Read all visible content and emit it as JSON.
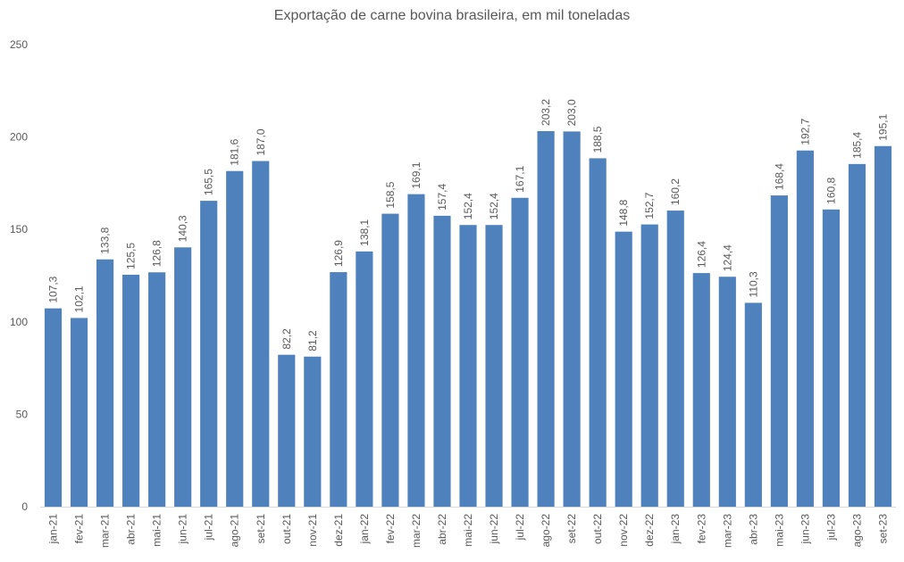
{
  "chart_data": {
    "type": "bar",
    "title": "Exportação de carne bovina brasileira, em mil toneladas",
    "xlabel": "",
    "ylabel": "",
    "ylim": [
      0,
      250
    ],
    "yticks": [
      0,
      50,
      100,
      150,
      200,
      250
    ],
    "grid": false,
    "legend": "none",
    "bar_color": "#4f81bd",
    "categories": [
      "jan-21",
      "fev-21",
      "mar-21",
      "abr-21",
      "mai-21",
      "jun-21",
      "jul-21",
      "ago-21",
      "set-21",
      "out-21",
      "nov-21",
      "dez-21",
      "jan-22",
      "fev-22",
      "mar-22",
      "abr-22",
      "mai-22",
      "jun-22",
      "jul-22",
      "ago-22",
      "set-22",
      "out-22",
      "nov-22",
      "dez-22",
      "jan-23",
      "fev-23",
      "mar-23",
      "abr-23",
      "mai-23",
      "jun-23",
      "jul-23",
      "ago-23",
      "set-23"
    ],
    "values": [
      107.3,
      102.1,
      133.8,
      125.5,
      126.8,
      140.3,
      165.5,
      181.6,
      187.0,
      82.2,
      81.2,
      126.9,
      138.1,
      158.5,
      169.1,
      157.4,
      152.4,
      152.4,
      167.1,
      203.2,
      203.0,
      188.5,
      148.8,
      152.7,
      160.2,
      126.4,
      124.4,
      110.3,
      168.4,
      192.7,
      160.8,
      185.4,
      195.1
    ],
    "value_labels": [
      "107,3",
      "102,1",
      "133,8",
      "125,5",
      "126,8",
      "140,3",
      "165,5",
      "181,6",
      "187,0",
      "82,2",
      "81,2",
      "126,9",
      "138,1",
      "158,5",
      "169,1",
      "157,4",
      "152,4",
      "152,4",
      "167,1",
      "203,2",
      "203,0",
      "188,5",
      "148,8",
      "152,7",
      "160,2",
      "126,4",
      "124,4",
      "110,3",
      "168,4",
      "192,7",
      "160,8",
      "185,4",
      "195,1"
    ]
  }
}
